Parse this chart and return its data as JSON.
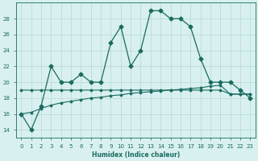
{
  "xlabel": "Humidex (Indice chaleur)",
  "x": [
    0,
    1,
    2,
    3,
    4,
    5,
    6,
    7,
    8,
    9,
    10,
    11,
    12,
    13,
    14,
    15,
    16,
    17,
    18,
    19,
    20,
    21,
    22,
    23
  ],
  "y_main": [
    16,
    14,
    17,
    22,
    20,
    20,
    21,
    20,
    20,
    25,
    27,
    22,
    24,
    29,
    29,
    28,
    28,
    27,
    23,
    20,
    20,
    20,
    19,
    18
  ],
  "y_upper": [
    19,
    19,
    19,
    19,
    19,
    19,
    19,
    19,
    19,
    19,
    19,
    19,
    19,
    19,
    19,
    19,
    19,
    19,
    19,
    19,
    19,
    18.5,
    18.5,
    18.5
  ],
  "y_lower": [
    16,
    16.2,
    16.7,
    17.1,
    17.4,
    17.6,
    17.8,
    18.0,
    18.1,
    18.3,
    18.4,
    18.6,
    18.7,
    18.8,
    18.9,
    19.0,
    19.1,
    19.2,
    19.3,
    19.5,
    19.6,
    18.5,
    18.5,
    18.5
  ],
  "ylim": [
    13,
    30
  ],
  "yticks": [
    14,
    16,
    18,
    20,
    22,
    24,
    26,
    28
  ],
  "xticks": [
    0,
    1,
    2,
    3,
    4,
    5,
    6,
    7,
    8,
    9,
    10,
    11,
    12,
    13,
    14,
    15,
    16,
    17,
    18,
    19,
    20,
    21,
    22,
    23
  ],
  "line_color": "#1a6b5e",
  "bg_color": "#d8f0f0",
  "grid_color": "#b8d8d4"
}
